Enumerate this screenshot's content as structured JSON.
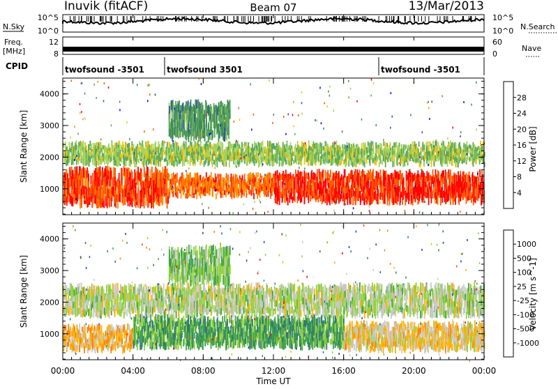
{
  "header": {
    "station": "Inuvik (fitACF)",
    "beam": "Beam 07",
    "date": "13/Mar/2013"
  },
  "status_panels": {
    "nsky_label": "N.Sky",
    "nsky_ticks": [
      "10^5",
      "10^0"
    ],
    "nsearch_label": "N.Search",
    "nsearch_ticks": [
      "10^5",
      "10^0"
    ],
    "freq_label": "Freq.",
    "freq_unit": "[MHz]",
    "freq_ticks": [
      "12",
      "8"
    ],
    "nave_label": "Nave",
    "nave_ticks": [
      "60",
      "0"
    ],
    "cpid_label": "CPID",
    "cpid_segments": [
      {
        "name": "twofsound -3501",
        "start_h": 0,
        "end_h": 5.8
      },
      {
        "name": "twofsound 3501",
        "start_h": 5.8,
        "end_h": 18.0
      },
      {
        "name": "twofsound -3501",
        "start_h": 18.0,
        "end_h": 24
      }
    ]
  },
  "x_axis": {
    "label": "Time UT",
    "ticks": [
      "00:00",
      "04:00",
      "08:00",
      "12:00",
      "16:00",
      "20:00",
      "00:00"
    ]
  },
  "power_panel": {
    "ylabel": "Slant Range [km]",
    "yticks": [
      "4000",
      "3000",
      "2000",
      "1000"
    ],
    "colorbar_label": "Power [dB]",
    "colorbar_ticks": [
      "28",
      "24",
      "20",
      "16",
      "12",
      "8",
      "4"
    ],
    "colors": [
      "#0000ff",
      "#2e4fa0",
      "#3f8a5c",
      "#5aa856",
      "#a6d25a",
      "#ffc000",
      "#ff9000",
      "#ff5a00",
      "#ff0000"
    ]
  },
  "velocity_panel": {
    "ylabel": "Slant Range [km]",
    "yticks": [
      "4000",
      "3000",
      "2000",
      "1000"
    ],
    "colorbar_label": "Velocity [m s^-1]",
    "colorbar_ticks": [
      "1000",
      "500",
      "100",
      "25",
      "-25",
      "-100",
      "-500",
      "-1000"
    ],
    "colors": [
      "#1a3ab8",
      "#2b5fa8",
      "#2e7a70",
      "#3fa34a",
      "#8fd23a",
      "#c8c8c8",
      "#ffb000",
      "#ff8000",
      "#ff4000",
      "#ff0000"
    ]
  },
  "chart_data": {
    "type": "heatmap",
    "x_range_hours": [
      0,
      24
    ],
    "y_range_km": [
      180,
      4500
    ],
    "panels": [
      {
        "name": "Power",
        "units": "dB",
        "z_range": [
          0,
          30
        ],
        "echo_bands": [
          {
            "t_start_h": 0.0,
            "t_end_h": 6.0,
            "range_km": [
              500,
              1600
            ],
            "value": 26
          },
          {
            "t_start_h": 6.0,
            "t_end_h": 12.0,
            "range_km": [
              800,
              1400
            ],
            "value": 24
          },
          {
            "t_start_h": 12.0,
            "t_end_h": 24.0,
            "range_km": [
              600,
              1500
            ],
            "value": 27
          },
          {
            "t_start_h": 0.0,
            "t_end_h": 24.0,
            "range_km": [
              1800,
              2400
            ],
            "value": 14
          },
          {
            "t_start_h": 6.0,
            "t_end_h": 9.5,
            "range_km": [
              2600,
              3700
            ],
            "value": 10
          }
        ]
      },
      {
        "name": "Velocity",
        "units": "m s^-1",
        "z_range": [
          -1000,
          1000
        ],
        "echo_bands": [
          {
            "t_start_h": 0.0,
            "t_end_h": 4.0,
            "range_km": [
              500,
              1200
            ],
            "value": -300
          },
          {
            "t_start_h": 4.0,
            "t_end_h": 16.0,
            "range_km": [
              600,
              1500
            ],
            "value": 300
          },
          {
            "t_start_h": 16.0,
            "t_end_h": 24.0,
            "range_km": [
              500,
              1300
            ],
            "value": -200
          },
          {
            "t_start_h": 0.0,
            "t_end_h": 24.0,
            "range_km": [
              1600,
              2500
            ],
            "value": 0
          },
          {
            "t_start_h": 6.0,
            "t_end_h": 9.5,
            "range_km": [
              2600,
              3700
            ],
            "value": 150
          }
        ]
      }
    ]
  }
}
